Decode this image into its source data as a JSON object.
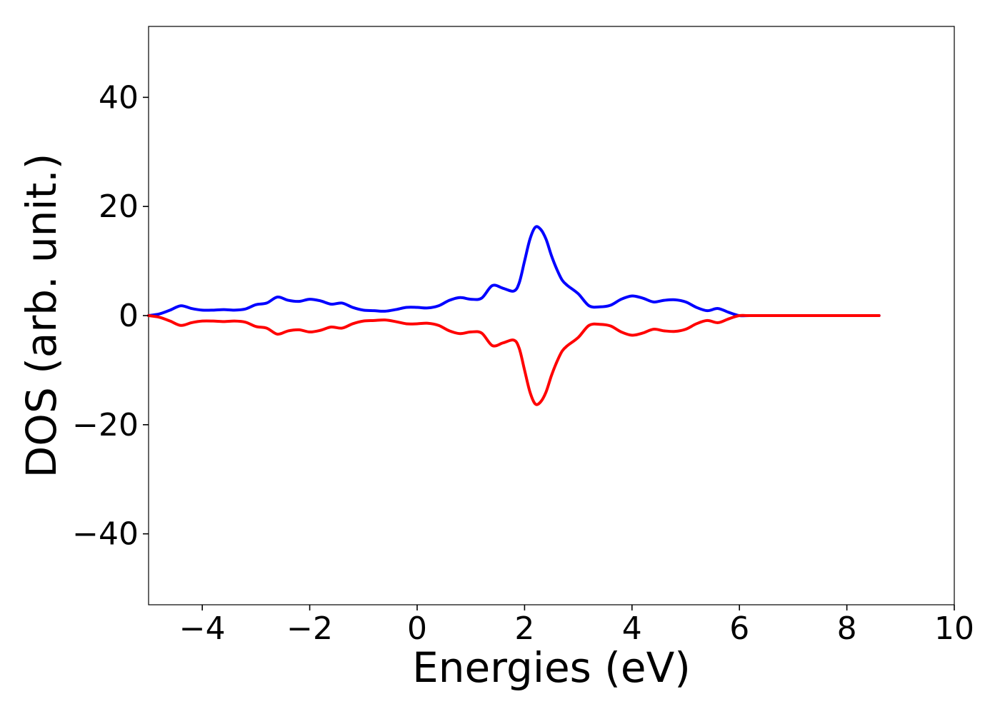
{
  "chart_data": {
    "type": "line",
    "title": "",
    "xlabel": "Energies (eV)",
    "ylabel": "DOS (arb. unit.)",
    "xlim": [
      -5,
      10
    ],
    "ylim": [
      -53,
      53
    ],
    "xticks": [
      -4,
      -2,
      0,
      2,
      4,
      6,
      8,
      10
    ],
    "xtick_labels": [
      "−4",
      "−2",
      "0",
      "2",
      "4",
      "6",
      "8",
      "10"
    ],
    "yticks": [
      -40,
      -20,
      0,
      20,
      40
    ],
    "ytick_labels": [
      "−40",
      "−20",
      "0",
      "20",
      "40"
    ],
    "grid": false,
    "series": [
      {
        "color": "#0000ff",
        "x": [
          -5.0,
          -4.8,
          -4.6,
          -4.4,
          -4.2,
          -4.0,
          -3.8,
          -3.6,
          -3.4,
          -3.2,
          -3.0,
          -2.8,
          -2.6,
          -2.4,
          -2.2,
          -2.0,
          -1.8,
          -1.6,
          -1.4,
          -1.2,
          -1.0,
          -0.8,
          -0.6,
          -0.4,
          -0.2,
          0.0,
          0.2,
          0.4,
          0.6,
          0.8,
          1.0,
          1.2,
          1.4,
          1.6,
          1.8,
          1.9,
          2.0,
          2.1,
          2.2,
          2.3,
          2.4,
          2.5,
          2.6,
          2.7,
          2.8,
          3.0,
          3.2,
          3.4,
          3.6,
          3.8,
          4.0,
          4.2,
          4.4,
          4.6,
          4.8,
          5.0,
          5.2,
          5.4,
          5.6,
          5.8,
          6.0,
          6.2,
          7.0,
          8.0,
          8.6
        ],
        "y": [
          0.0,
          0.3,
          1.0,
          1.8,
          1.3,
          1.0,
          1.0,
          1.1,
          1.0,
          1.2,
          2.0,
          2.3,
          3.4,
          2.8,
          2.6,
          3.0,
          2.7,
          2.1,
          2.3,
          1.5,
          1.0,
          0.9,
          0.8,
          1.1,
          1.5,
          1.5,
          1.4,
          1.8,
          2.8,
          3.3,
          3.0,
          3.2,
          5.5,
          5.0,
          4.5,
          6.0,
          10.0,
          14.0,
          16.2,
          15.8,
          14.0,
          11.0,
          8.5,
          6.5,
          5.5,
          4.0,
          1.8,
          1.6,
          1.9,
          3.0,
          3.6,
          3.2,
          2.5,
          2.8,
          2.9,
          2.5,
          1.5,
          0.9,
          1.3,
          0.6,
          0.0,
          0.0,
          0.0,
          0.0,
          0.0
        ]
      },
      {
        "color": "#ff0000",
        "x": [
          -5.0,
          -4.8,
          -4.6,
          -4.4,
          -4.2,
          -4.0,
          -3.8,
          -3.6,
          -3.4,
          -3.2,
          -3.0,
          -2.8,
          -2.6,
          -2.4,
          -2.2,
          -2.0,
          -1.8,
          -1.6,
          -1.4,
          -1.2,
          -1.0,
          -0.8,
          -0.6,
          -0.4,
          -0.2,
          0.0,
          0.2,
          0.4,
          0.6,
          0.8,
          1.0,
          1.2,
          1.4,
          1.6,
          1.8,
          1.9,
          2.0,
          2.1,
          2.2,
          2.3,
          2.4,
          2.5,
          2.6,
          2.7,
          2.8,
          3.0,
          3.2,
          3.4,
          3.6,
          3.8,
          4.0,
          4.2,
          4.4,
          4.6,
          4.8,
          5.0,
          5.2,
          5.4,
          5.6,
          5.8,
          6.0,
          6.2,
          7.0,
          8.0,
          8.6
        ],
        "y": [
          0.0,
          -0.3,
          -1.0,
          -1.8,
          -1.3,
          -1.0,
          -1.0,
          -1.1,
          -1.0,
          -1.2,
          -2.0,
          -2.3,
          -3.4,
          -2.8,
          -2.6,
          -3.0,
          -2.7,
          -2.1,
          -2.3,
          -1.5,
          -1.0,
          -0.9,
          -0.8,
          -1.1,
          -1.5,
          -1.5,
          -1.4,
          -1.8,
          -2.8,
          -3.3,
          -3.0,
          -3.2,
          -5.5,
          -5.0,
          -4.5,
          -6.0,
          -10.0,
          -14.0,
          -16.2,
          -15.8,
          -14.0,
          -11.0,
          -8.5,
          -6.5,
          -5.5,
          -4.0,
          -1.8,
          -1.6,
          -1.9,
          -3.0,
          -3.6,
          -3.2,
          -2.5,
          -2.8,
          -2.9,
          -2.5,
          -1.5,
          -0.9,
          -1.3,
          -0.6,
          0.0,
          0.0,
          0.0,
          0.0,
          0.0
        ]
      }
    ]
  }
}
